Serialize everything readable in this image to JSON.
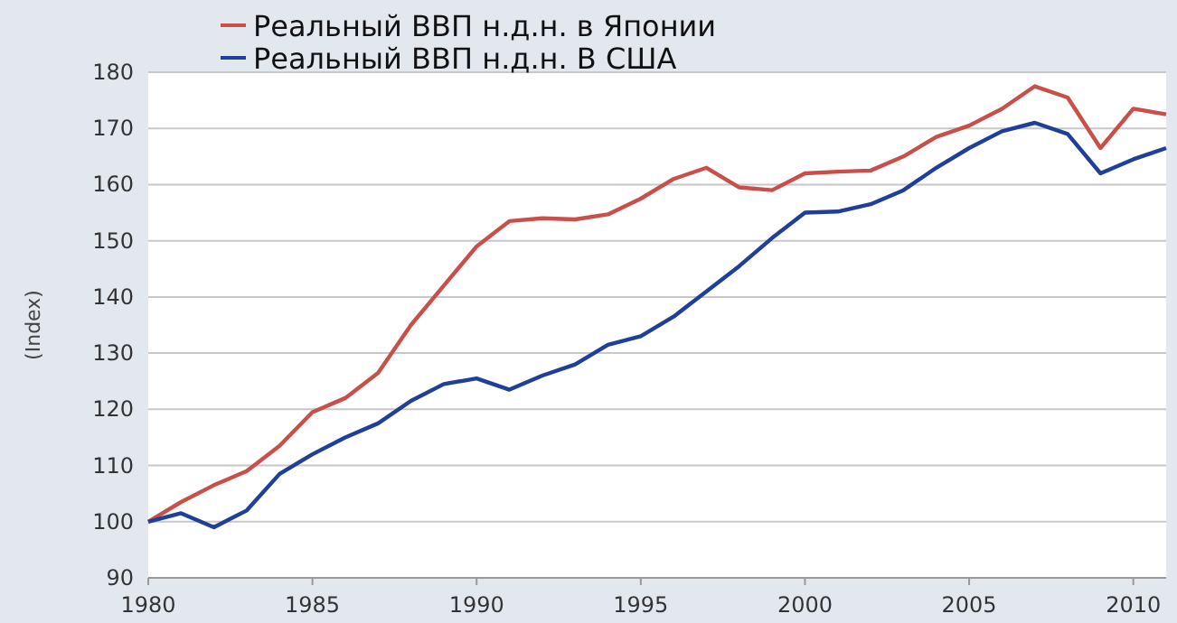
{
  "chart_data": {
    "type": "line",
    "ylabel": "(Index)",
    "x": [
      1980,
      1981,
      1982,
      1983,
      1984,
      1985,
      1986,
      1987,
      1988,
      1989,
      1990,
      1991,
      1992,
      1993,
      1994,
      1995,
      1996,
      1997,
      1998,
      1999,
      2000,
      2001,
      2002,
      2003,
      2004,
      2005,
      2006,
      2007,
      2008,
      2009,
      2010,
      2011
    ],
    "series": [
      {
        "name": "Реальный ВВП н.д.н. в Японии",
        "color": "#c9504a",
        "values": [
          100,
          103.5,
          106.5,
          109,
          113.5,
          119.5,
          122,
          126.5,
          135,
          142,
          149,
          153.5,
          154,
          153.8,
          154.7,
          157.5,
          161,
          163,
          159.5,
          159,
          162,
          162.3,
          162.5,
          165,
          168.5,
          170.5,
          173.5,
          177.5,
          175.5,
          166.5,
          173.5,
          172.5
        ]
      },
      {
        "name": "Реальный ВВП н.д.н. В США",
        "color": "#1f3f9a",
        "values": [
          100,
          101.5,
          99,
          102,
          108.5,
          112,
          115,
          117.5,
          121.5,
          124.5,
          125.5,
          123.5,
          126,
          128,
          131.5,
          133,
          136.5,
          141,
          145.5,
          150.5,
          155,
          155.2,
          156.5,
          159,
          163,
          166.5,
          169.5,
          171,
          169,
          162,
          164.5,
          166.5
        ]
      }
    ],
    "xlim": [
      1980,
      2011
    ],
    "xticks": [
      1980,
      1985,
      1990,
      1995,
      2000,
      2005,
      2010
    ],
    "ylim": [
      90,
      180
    ],
    "yticks": [
      90,
      100,
      110,
      120,
      130,
      140,
      150,
      160,
      170,
      180
    ],
    "grid": "y",
    "legend": "top",
    "line_style": "solid",
    "marker": "none"
  }
}
